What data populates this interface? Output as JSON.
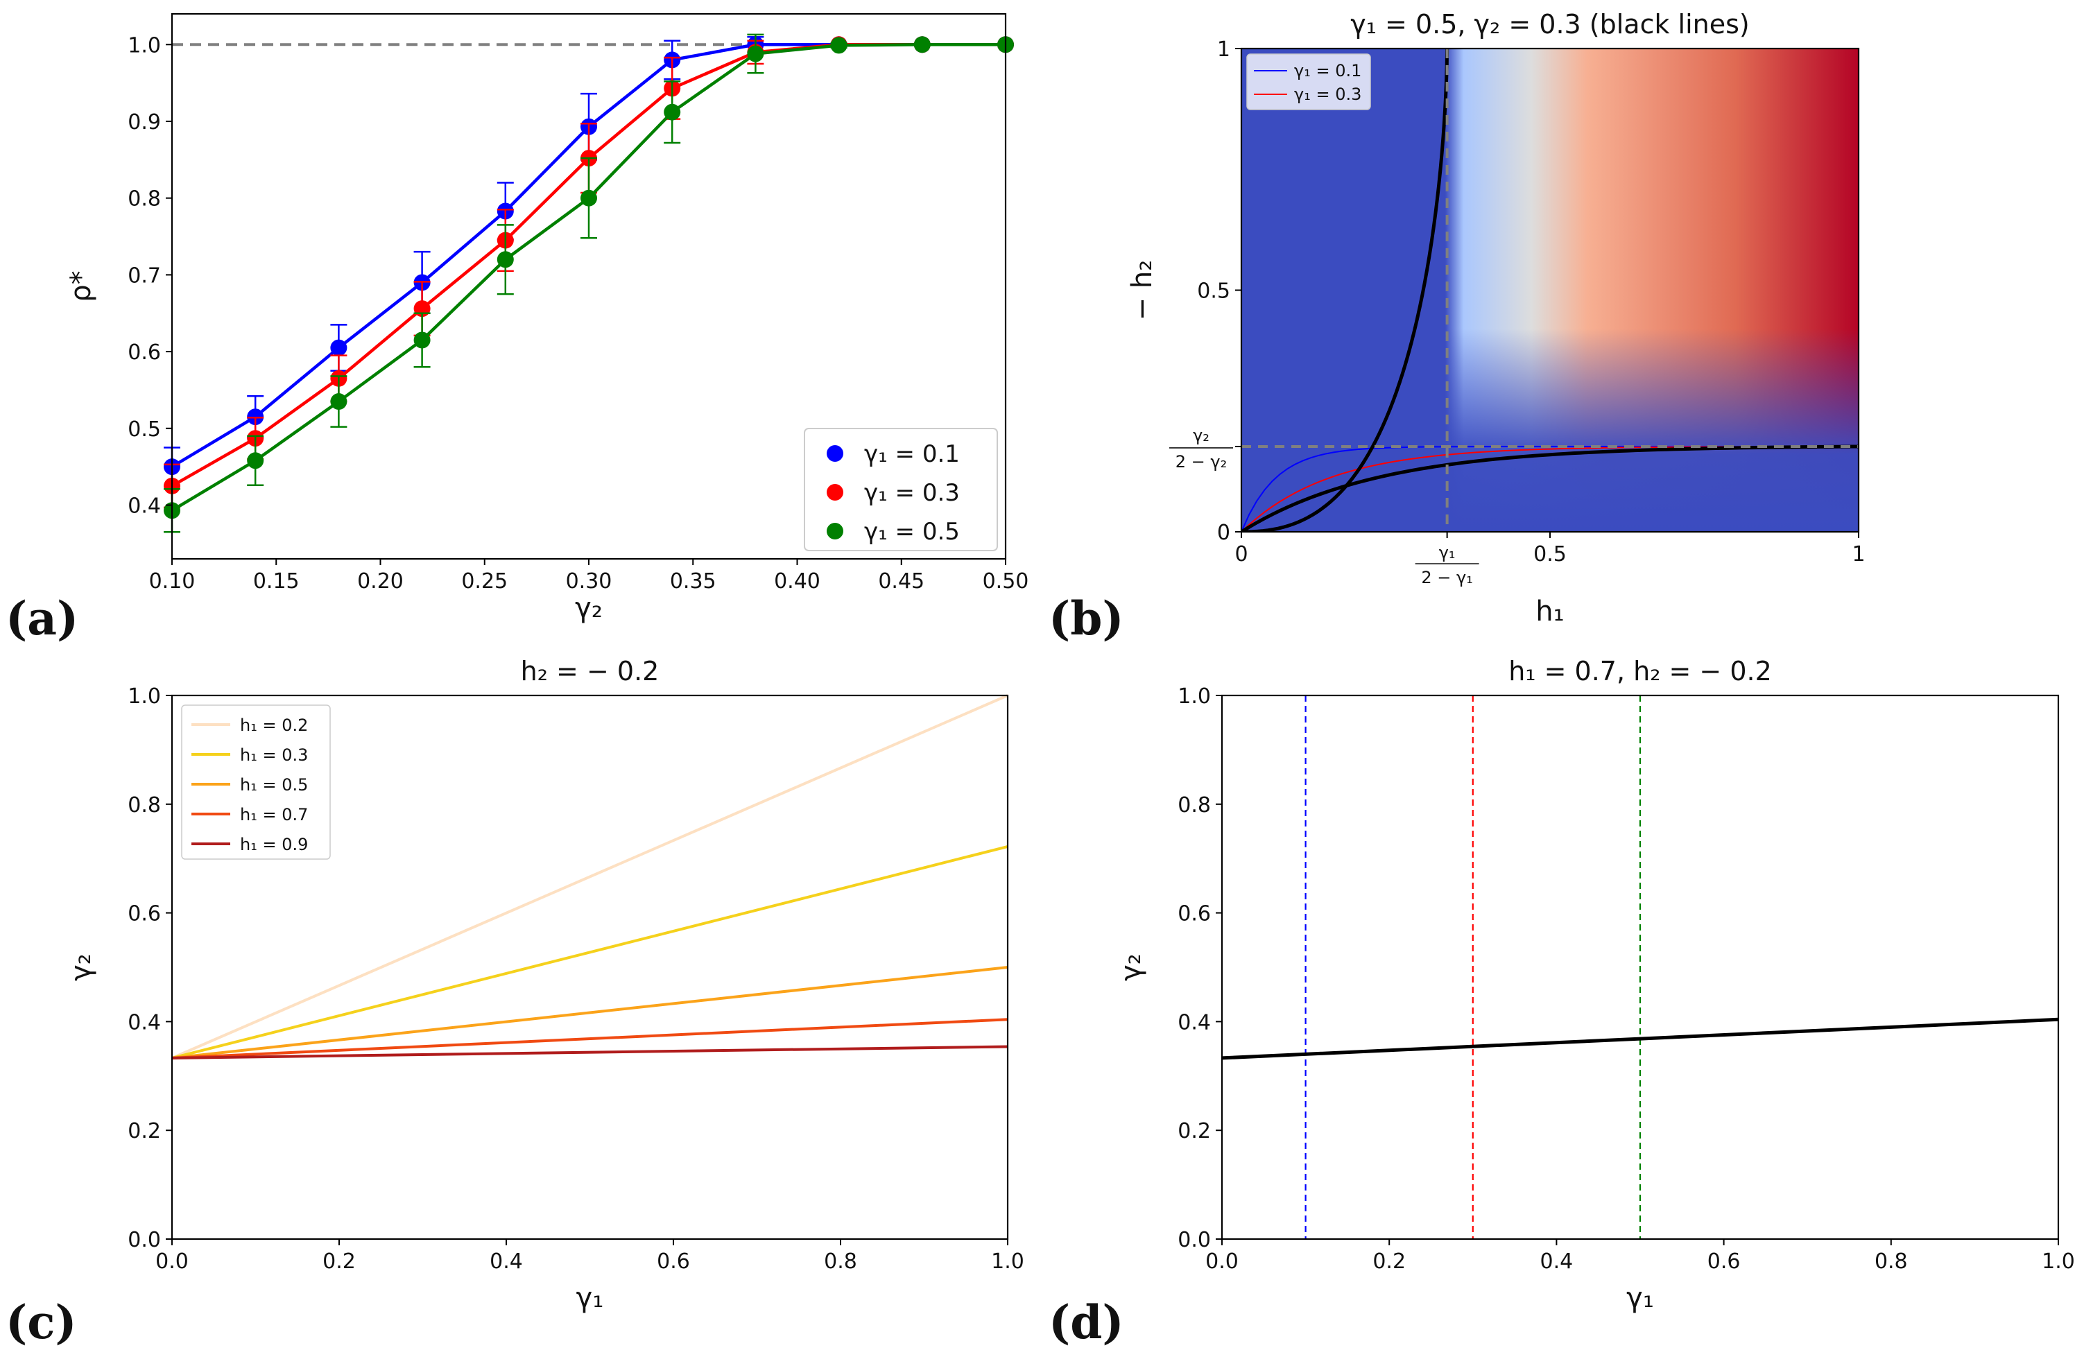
{
  "panel_labels": [
    "(a)",
    "(b)",
    "(c)",
    "(d)"
  ],
  "chart_data": [
    {
      "id": "a",
      "type": "line",
      "title": "",
      "xlabel": "γ₂",
      "ylabel": "ρ*",
      "xlim": [
        0.1,
        0.5
      ],
      "ylim": [
        0.33,
        1.04
      ],
      "xticks": [
        0.1,
        0.15,
        0.2,
        0.25,
        0.3,
        0.35,
        0.4,
        0.45,
        0.5
      ],
      "xtick_labels": [
        "0.10",
        "0.15",
        "0.20",
        "0.25",
        "0.30",
        "0.35",
        "0.40",
        "0.45",
        "0.50"
      ],
      "yticks": [
        0.4,
        0.5,
        0.6,
        0.7,
        0.8,
        0.9,
        1.0
      ],
      "ytick_labels": [
        "0.4",
        "0.5",
        "0.6",
        "0.7",
        "0.8",
        "0.9",
        "1.0"
      ],
      "reference_line": {
        "y": 1.0,
        "style": "dashed",
        "color": "#808080"
      },
      "legend_position": "lower right",
      "x": [
        0.1,
        0.14,
        0.18,
        0.22,
        0.26,
        0.3,
        0.34,
        0.38,
        0.42,
        0.46,
        0.5
      ],
      "series": [
        {
          "name": "γ₁ = 0.1",
          "color": "#0000ff",
          "values": [
            0.45,
            0.515,
            0.605,
            0.69,
            0.783,
            0.893,
            0.98,
            1.0,
            1.0,
            1.0,
            1.0
          ],
          "errors": [
            0.025,
            0.027,
            0.03,
            0.04,
            0.037,
            0.043,
            0.025,
            0.01,
            0.0,
            0.0,
            0.0
          ]
        },
        {
          "name": "γ₁ = 0.3",
          "color": "#ff0000",
          "values": [
            0.425,
            0.487,
            0.565,
            0.656,
            0.745,
            0.852,
            0.943,
            0.99,
            1.0,
            1.0,
            1.0
          ],
          "errors": [
            0.028,
            0.027,
            0.03,
            0.035,
            0.04,
            0.045,
            0.04,
            0.015,
            0.0,
            0.0,
            0.0
          ]
        },
        {
          "name": "γ₁ = 0.5",
          "color": "#008000",
          "values": [
            0.393,
            0.458,
            0.535,
            0.615,
            0.72,
            0.8,
            0.912,
            0.988,
            0.999,
            1.0,
            1.0
          ],
          "errors": [
            0.028,
            0.032,
            0.033,
            0.035,
            0.045,
            0.052,
            0.04,
            0.025,
            0.003,
            0.0,
            0.0
          ]
        }
      ]
    },
    {
      "id": "b",
      "type": "heatmap",
      "title": "γ₁ = 0.5, γ₂ = 0.3 (black lines)",
      "xlabel": "h₁",
      "ylabel": "− h₂",
      "xlim": [
        0,
        1
      ],
      "ylim": [
        0,
        1
      ],
      "xticks": [
        0,
        0.5,
        1
      ],
      "xtick_labels": [
        "0",
        "0.5",
        "1"
      ],
      "yticks": [
        0,
        0.5,
        1
      ],
      "ytick_labels": [
        "0",
        "0.5",
        "1"
      ],
      "special_xtick": {
        "value": 0.3333,
        "numerator": "γ₁",
        "denominator": "2 − γ₁"
      },
      "special_ytick": {
        "value": 0.1765,
        "numerator": "γ₂",
        "denominator": "2 − γ₂"
      },
      "colormap": [
        "#3b4cc0",
        "#aac7fd",
        "#dddddd",
        "#f7b093",
        "#e06a53",
        "#b40426"
      ],
      "legend_position": "top-left",
      "lines": [
        {
          "name": "γ₁ = 0.1",
          "color": "#0000ff",
          "h_to": 0.1765,
          "x0": 0.0
        },
        {
          "name": "γ₁ = 0.3",
          "color": "#ff0000",
          "h_to": 0.1765,
          "x0": 0.0
        },
        {
          "name": "black-lower",
          "color": "#000000",
          "h_to": 0.1765,
          "x0": 0.0
        },
        {
          "name": "black-upper",
          "color": "#000000",
          "x_to": 0.3333
        }
      ]
    },
    {
      "id": "c",
      "type": "line",
      "title": "h₂ = − 0.2",
      "xlabel": "γ₁",
      "ylabel": "γ₂",
      "xlim": [
        0,
        1
      ],
      "ylim": [
        0,
        1
      ],
      "xticks": [
        0,
        0.2,
        0.4,
        0.6,
        0.8,
        1.0
      ],
      "xtick_labels": [
        "0.0",
        "0.2",
        "0.4",
        "0.6",
        "0.8",
        "1.0"
      ],
      "yticks": [
        0,
        0.2,
        0.4,
        0.6,
        0.8,
        1.0
      ],
      "ytick_labels": [
        "0.0",
        "0.2",
        "0.4",
        "0.6",
        "0.8",
        "1.0"
      ],
      "legend_position": "top-left",
      "x": [
        0,
        1
      ],
      "series": [
        {
          "name": "h₁ = 0.2",
          "color": "#fde0c2",
          "values": [
            0.333,
            1.0
          ]
        },
        {
          "name": "h₁ = 0.3",
          "color": "#f5d11c",
          "values": [
            0.333,
            0.722
          ]
        },
        {
          "name": "h₁ = 0.5",
          "color": "#fba31a",
          "values": [
            0.333,
            0.5
          ]
        },
        {
          "name": "h₁ = 0.7",
          "color": "#f04a12",
          "values": [
            0.333,
            0.404
          ]
        },
        {
          "name": "h₁ = 0.9",
          "color": "#b01c1c",
          "values": [
            0.333,
            0.354
          ]
        }
      ]
    },
    {
      "id": "d",
      "type": "line",
      "title": "h₁ = 0.7, h₂ = − 0.2",
      "xlabel": "γ₁",
      "ylabel": "γ₂",
      "xlim": [
        0,
        1
      ],
      "ylim": [
        0,
        1
      ],
      "xticks": [
        0,
        0.2,
        0.4,
        0.6,
        0.8,
        1.0
      ],
      "xtick_labels": [
        "0.0",
        "0.2",
        "0.4",
        "0.6",
        "0.8",
        "1.0"
      ],
      "yticks": [
        0,
        0.2,
        0.4,
        0.6,
        0.8,
        1.0
      ],
      "ytick_labels": [
        "0.0",
        "0.2",
        "0.4",
        "0.6",
        "0.8",
        "1.0"
      ],
      "x": [
        0,
        1
      ],
      "series": [
        {
          "name": "boundary",
          "color": "#000000",
          "values": [
            0.333,
            0.404
          ]
        }
      ],
      "vlines": [
        {
          "x": 0.1,
          "color": "#0000ff",
          "style": "dashed"
        },
        {
          "x": 0.3,
          "color": "#ff0000",
          "style": "dashed"
        },
        {
          "x": 0.5,
          "color": "#008000",
          "style": "dashed"
        }
      ]
    }
  ]
}
